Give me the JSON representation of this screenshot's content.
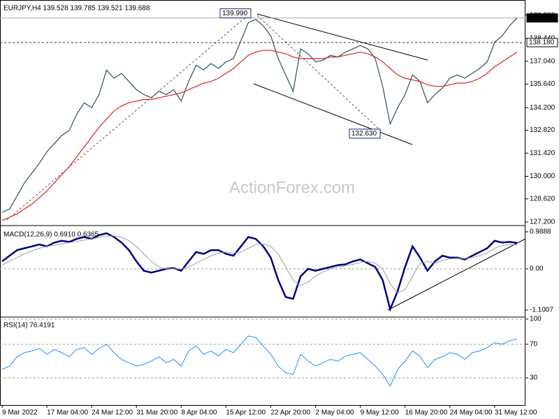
{
  "chart_data": [
    {
      "type": "line",
      "title": "EURJPY,H4  139.528 139.785 139.521 139.688",
      "ylim": [
        127.03,
        140.7
      ],
      "yticks": [
        {
          "value": 127.2,
          "label": "127.200"
        },
        {
          "value": 128.62,
          "label": "128.620"
        },
        {
          "value": 130,
          "label": "130.000"
        },
        {
          "value": 131.42,
          "label": "131.420"
        },
        {
          "value": 132.82,
          "label": "132.820"
        },
        {
          "value": 134.2,
          "label": "134.200"
        },
        {
          "value": 135.64,
          "label": "135.640"
        },
        {
          "value": 137.04,
          "label": "137.040"
        },
        {
          "value": 138.44,
          "label": "138.440"
        },
        {
          "value": 139.86,
          "label": "139.860"
        }
      ],
      "watermark": "ActionForex.com",
      "levels": [
        {
          "value": 139.688,
          "label": "139.688"
        },
        {
          "value": 138.18,
          "label": "138.180"
        }
      ],
      "annotations": [
        {
          "value": 139.99,
          "label": "139.990"
        },
        {
          "value": 132.63,
          "label": "132.630"
        }
      ],
      "series": [
        {
          "name": "EURJPY",
          "color": "#2f4f5f",
          "values": [
            127.8,
            128.0,
            128.8,
            129.6,
            130.2,
            130.8,
            131.5,
            132.0,
            132.5,
            132.8,
            133.8,
            134.5,
            134.2,
            135.0,
            136.5,
            136.0,
            136.3,
            135.8,
            135.3,
            135.0,
            134.8,
            135.2,
            135.0,
            135.3,
            134.6,
            135.8,
            136.8,
            136.5,
            136.9,
            136.6,
            137.0,
            137.2,
            138.3,
            139.4,
            139.6,
            139.2,
            138.6,
            137.2,
            136.2,
            135.2,
            137.8,
            137.5,
            137.0,
            137.1,
            137.4,
            137.3,
            137.6,
            137.8,
            138.0,
            137.8,
            137.2,
            135.5,
            133.2,
            134.2,
            135.0,
            136.2,
            135.8,
            134.5,
            135.0,
            135.4,
            136.0,
            136.2,
            136.0,
            136.3,
            136.6,
            137.0,
            138.2,
            138.6,
            139.2,
            139.688
          ]
        },
        {
          "name": "MA",
          "color": "#e02020",
          "values": [
            127.3,
            127.5,
            127.7,
            128.0,
            128.3,
            128.7,
            129.1,
            129.6,
            130.1,
            130.6,
            131.2,
            131.8,
            132.4,
            133.0,
            133.5,
            134.0,
            134.3,
            134.5,
            134.6,
            134.7,
            134.7,
            134.8,
            134.9,
            135.0,
            135.1,
            135.3,
            135.5,
            135.7,
            135.8,
            136.0,
            136.3,
            136.6,
            137.0,
            137.4,
            137.6,
            137.7,
            137.7,
            137.6,
            137.5,
            137.3,
            137.2,
            137.2,
            137.2,
            137.2,
            137.3,
            137.3,
            137.4,
            137.5,
            137.6,
            137.5,
            137.3,
            137.0,
            136.6,
            136.2,
            136.0,
            135.9,
            135.8,
            135.6,
            135.5,
            135.5,
            135.6,
            135.7,
            135.7,
            135.8,
            136.0,
            136.3,
            136.7,
            137.0,
            137.3,
            137.6
          ]
        }
      ]
    },
    {
      "type": "line",
      "title": "MACD(12,26,9) 0.6910 0.6365",
      "ylim": [
        -1.25,
        1.1
      ],
      "yticks": [
        0.9888,
        {
          "value": 0,
          "label": "0.00"
        },
        -1.1007
      ],
      "zero_line": true,
      "series": [
        {
          "name": "MACD",
          "color": "#000080",
          "width": 2.5,
          "values": [
            0.2,
            0.35,
            0.5,
            0.55,
            0.6,
            0.65,
            0.6,
            0.7,
            0.75,
            0.72,
            0.8,
            0.85,
            0.8,
            0.9,
            0.95,
            0.85,
            0.7,
            0.5,
            0.2,
            -0.05,
            -0.1,
            -0.05,
            0.0,
            0.02,
            -0.05,
            0.2,
            0.45,
            0.4,
            0.5,
            0.5,
            0.4,
            0.35,
            0.6,
            0.85,
            0.8,
            0.6,
            0.3,
            -0.3,
            -0.75,
            -0.8,
            -0.2,
            0.0,
            -0.05,
            0.0,
            0.05,
            0.1,
            0.12,
            0.2,
            0.25,
            0.15,
            0.05,
            -0.3,
            -1.08,
            -0.6,
            0.05,
            0.6,
            0.3,
            -0.05,
            0.2,
            0.35,
            0.3,
            0.3,
            0.25,
            0.35,
            0.45,
            0.55,
            0.75,
            0.7,
            0.72,
            0.691
          ]
        },
        {
          "name": "Signal",
          "color": "#a0a0a0",
          "width": 1,
          "values": [
            0.1,
            0.2,
            0.3,
            0.4,
            0.48,
            0.55,
            0.6,
            0.63,
            0.67,
            0.7,
            0.73,
            0.77,
            0.8,
            0.84,
            0.87,
            0.88,
            0.84,
            0.75,
            0.6,
            0.4,
            0.2,
            0.05,
            0.0,
            0.0,
            0.0,
            0.05,
            0.15,
            0.25,
            0.35,
            0.42,
            0.45,
            0.42,
            0.45,
            0.55,
            0.65,
            0.67,
            0.6,
            0.4,
            0.05,
            -0.3,
            -0.45,
            -0.35,
            -0.2,
            -0.08,
            0.0,
            0.05,
            0.08,
            0.12,
            0.17,
            0.2,
            0.15,
            0.0,
            -0.4,
            -0.65,
            -0.55,
            -0.2,
            0.15,
            0.2,
            0.15,
            0.22,
            0.27,
            0.28,
            0.28,
            0.3,
            0.35,
            0.42,
            0.55,
            0.62,
            0.65,
            0.6365
          ]
        }
      ]
    },
    {
      "type": "line",
      "title": "RSI(14) 76.4191",
      "ylim": [
        -2.5,
        100.8
      ],
      "yticks": [
        100,
        70,
        30
      ],
      "grid": true,
      "categories": [
        "9 Mar 2022",
        null,
        null,
        null,
        null,
        null,
        "17 Mar 04:00",
        null,
        null,
        null,
        null,
        null,
        "24 Mar 12:00",
        null,
        null,
        null,
        null,
        null,
        "31 Mar 20:00",
        null,
        null,
        null,
        null,
        null,
        "8 Apr 04:00",
        null,
        null,
        null,
        null,
        null,
        "15 Apr 12:00",
        null,
        null,
        null,
        null,
        null,
        "22 Apr 20:00",
        null,
        null,
        null,
        null,
        null,
        "2 May 04:00",
        null,
        null,
        null,
        null,
        null,
        "9 May 12:00",
        null,
        null,
        null,
        null,
        null,
        "16 May 20:00",
        null,
        null,
        null,
        null,
        null,
        "24 May 04:00",
        null,
        null,
        null,
        null,
        null,
        "31 May 12:00",
        null,
        null,
        null
      ],
      "series": [
        {
          "name": "RSI",
          "color": "#1e90ff",
          "width": 1,
          "values": [
            40,
            44,
            55,
            60,
            62,
            65,
            58,
            64,
            60,
            55,
            64,
            66,
            58,
            65,
            70,
            60,
            52,
            48,
            44,
            46,
            50,
            55,
            48,
            52,
            44,
            62,
            68,
            58,
            62,
            56,
            64,
            60,
            70,
            80,
            78,
            68,
            58,
            44,
            36,
            34,
            58,
            50,
            44,
            48,
            52,
            50,
            56,
            58,
            60,
            52,
            44,
            34,
            20,
            40,
            50,
            62,
            56,
            42,
            52,
            55,
            60,
            58,
            52,
            60,
            62,
            66,
            72,
            70,
            74,
            76.4191
          ]
        }
      ]
    }
  ]
}
